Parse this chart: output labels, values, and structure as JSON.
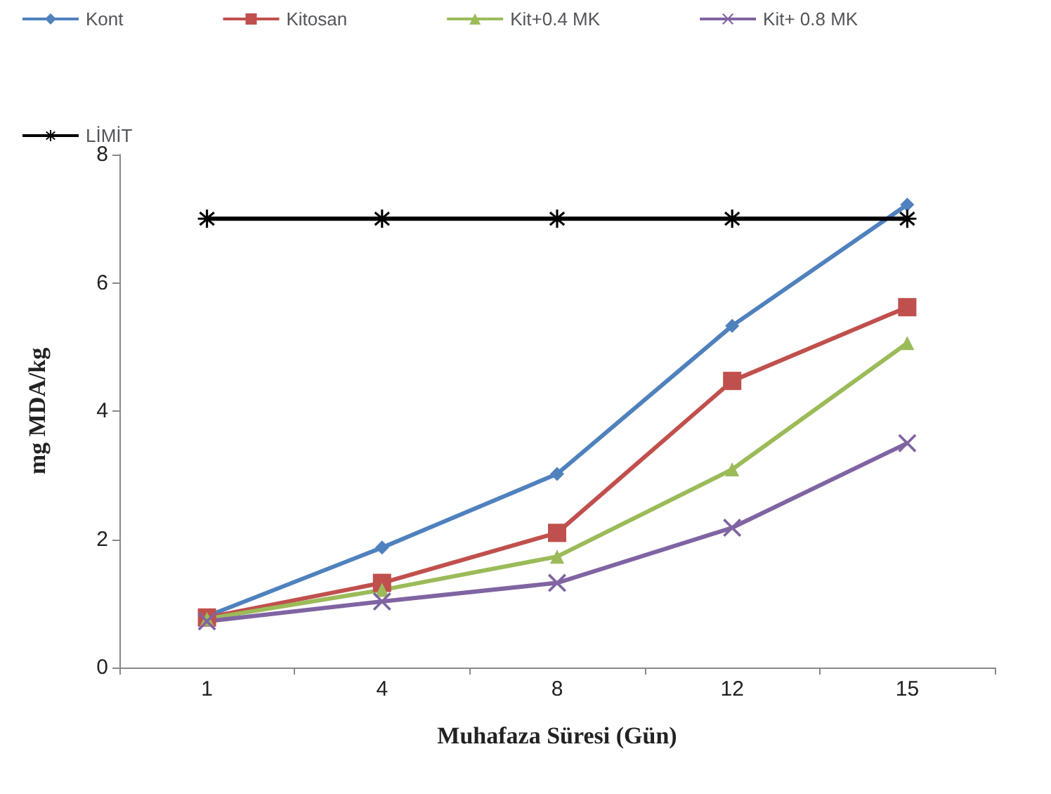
{
  "chart_data": {
    "type": "line",
    "xlabel": "Muhafaza Süresi (Gün)",
    "ylabel": "mg MDA/kg",
    "categories": [
      "1",
      "4",
      "8",
      "12",
      "15"
    ],
    "ylim": [
      0,
      8
    ],
    "yticks": [
      0,
      2,
      4,
      6,
      8
    ],
    "grid": false,
    "legend": "top",
    "series": [
      {
        "name": "Kont",
        "color": "#4f81bd",
        "marker": "diamond",
        "values": [
          0.8,
          1.87,
          3.02,
          5.33,
          7.22
        ]
      },
      {
        "name": "Kitosan",
        "color": "#c0504d",
        "marker": "square",
        "values": [
          0.78,
          1.32,
          2.1,
          4.47,
          5.62
        ]
      },
      {
        "name": "Kit+0.4 MK",
        "color": "#9bbb59",
        "marker": "triangle",
        "values": [
          0.76,
          1.21,
          1.73,
          3.09,
          5.06
        ]
      },
      {
        "name": "Kit+ 0.8 MK",
        "color": "#8064a2",
        "marker": "cross",
        "values": [
          0.72,
          1.03,
          1.32,
          2.18,
          3.5
        ]
      },
      {
        "name": "LİMİT",
        "color": "#000000",
        "marker": "star",
        "values": [
          7,
          7,
          7,
          7,
          7
        ]
      }
    ]
  }
}
